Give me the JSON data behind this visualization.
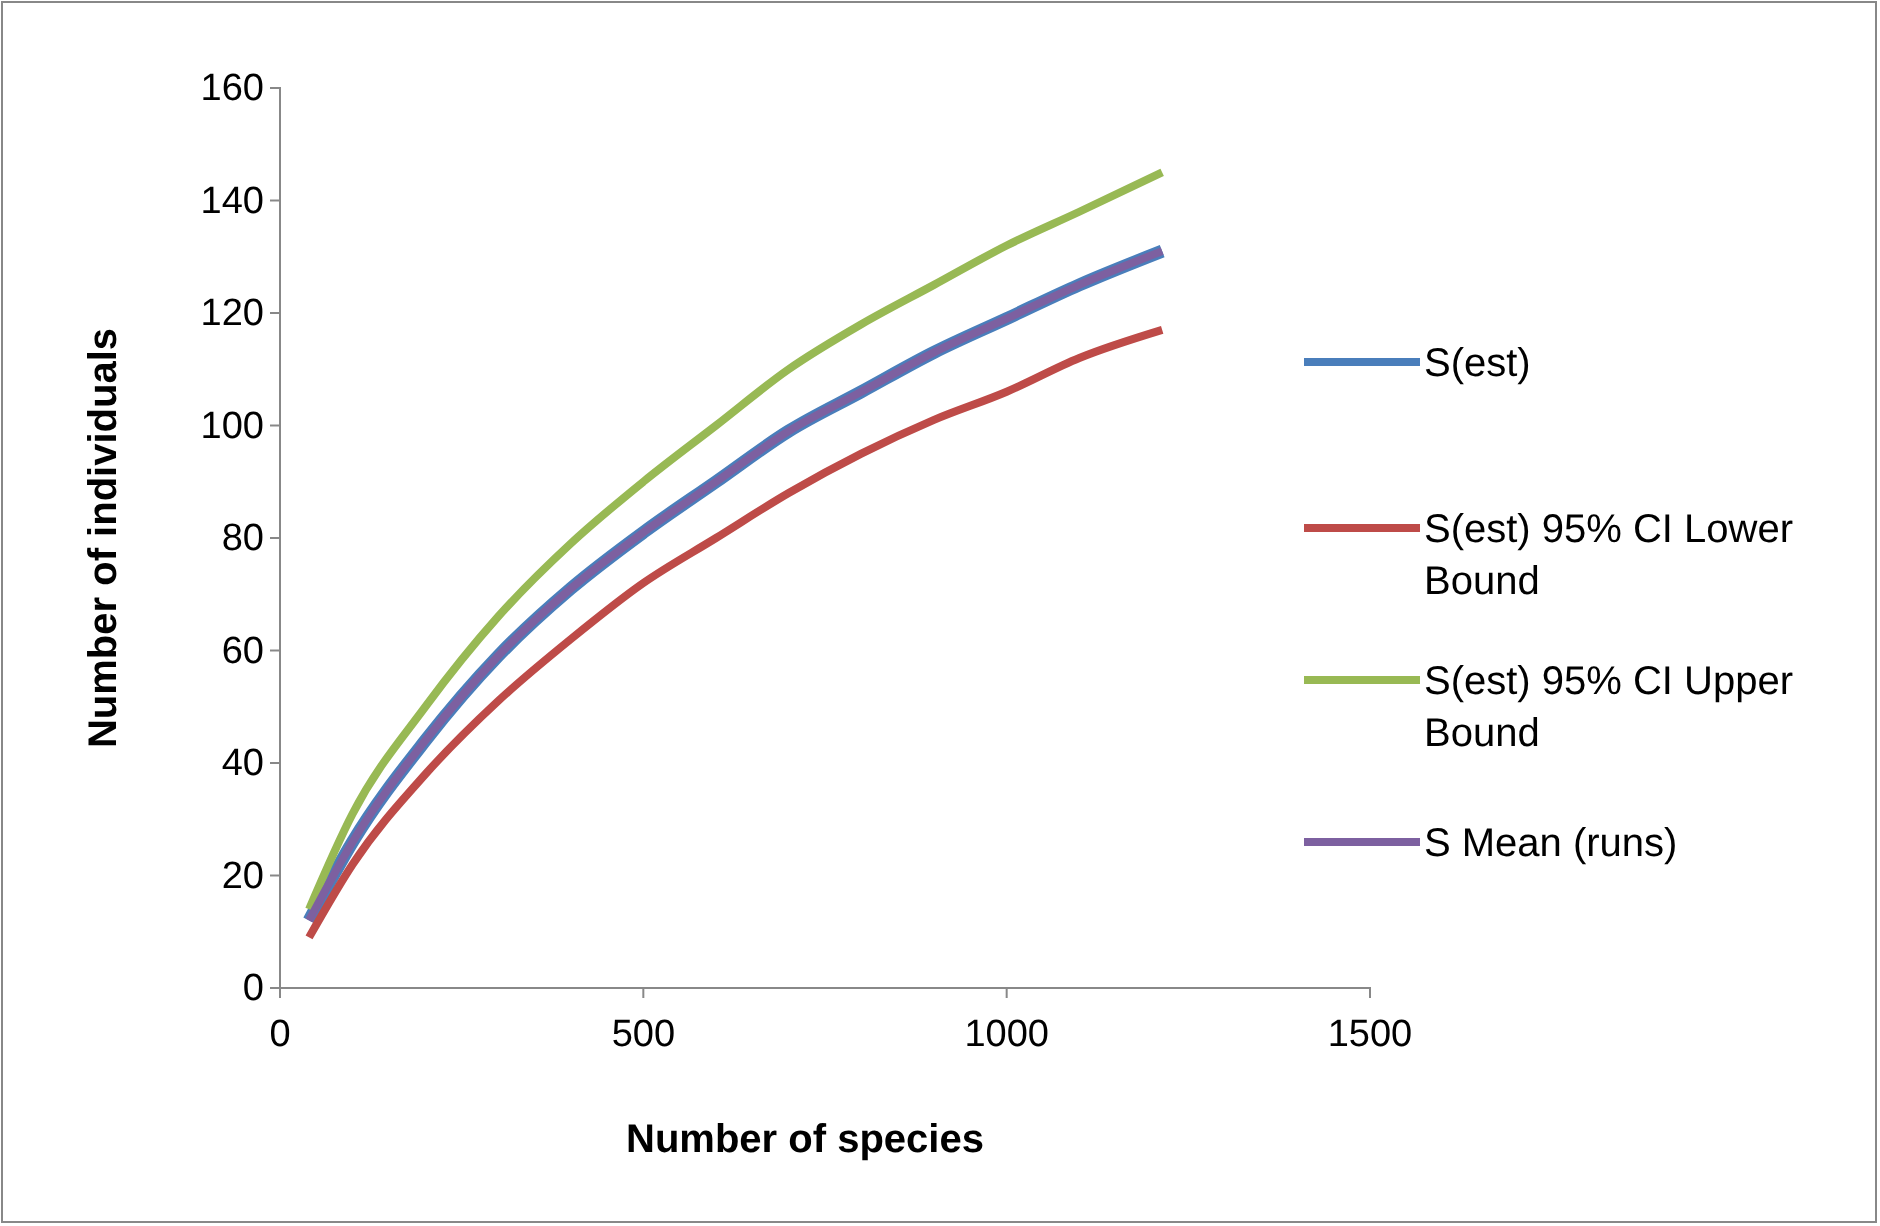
{
  "chart_data": {
    "type": "line",
    "xlabel": "Number of species",
    "ylabel": "Number of individuals",
    "x": [
      40,
      100,
      200,
      300,
      400,
      500,
      600,
      700,
      800,
      900,
      1000,
      1100,
      1214
    ],
    "series": [
      {
        "name": "S(est)",
        "color": "#4a7ebb",
        "values": [
          12,
          26,
          44,
          59,
          71,
          81,
          90,
          99,
          106,
          113,
          119,
          125,
          131
        ]
      },
      {
        "name": "S(est) 95% CI Lower Bound",
        "color": "#be4b48",
        "values": [
          9,
          22,
          38,
          51,
          62,
          72,
          80,
          88,
          95,
          101,
          106,
          112,
          117
        ]
      },
      {
        "name": "S(est) 95% CI Upper Bound",
        "color": "#98b954",
        "values": [
          14,
          31,
          50,
          66,
          79,
          90,
          100,
          110,
          118,
          125,
          132,
          138,
          145
        ]
      },
      {
        "name": "S Mean (runs)",
        "color": "#7d60a0",
        "values": [
          12,
          26,
          44,
          59,
          71,
          81,
          90,
          99,
          106,
          113,
          119,
          125,
          131
        ]
      }
    ],
    "xlim": [
      0,
      1500
    ],
    "xticks": [
      0,
      500,
      1000,
      1500
    ],
    "ylim": [
      0,
      160
    ],
    "yticks": [
      0,
      20,
      40,
      60,
      80,
      100,
      120,
      140,
      160
    ],
    "grid": false,
    "legend": "right",
    "marker": "none",
    "line_style": "solid"
  }
}
